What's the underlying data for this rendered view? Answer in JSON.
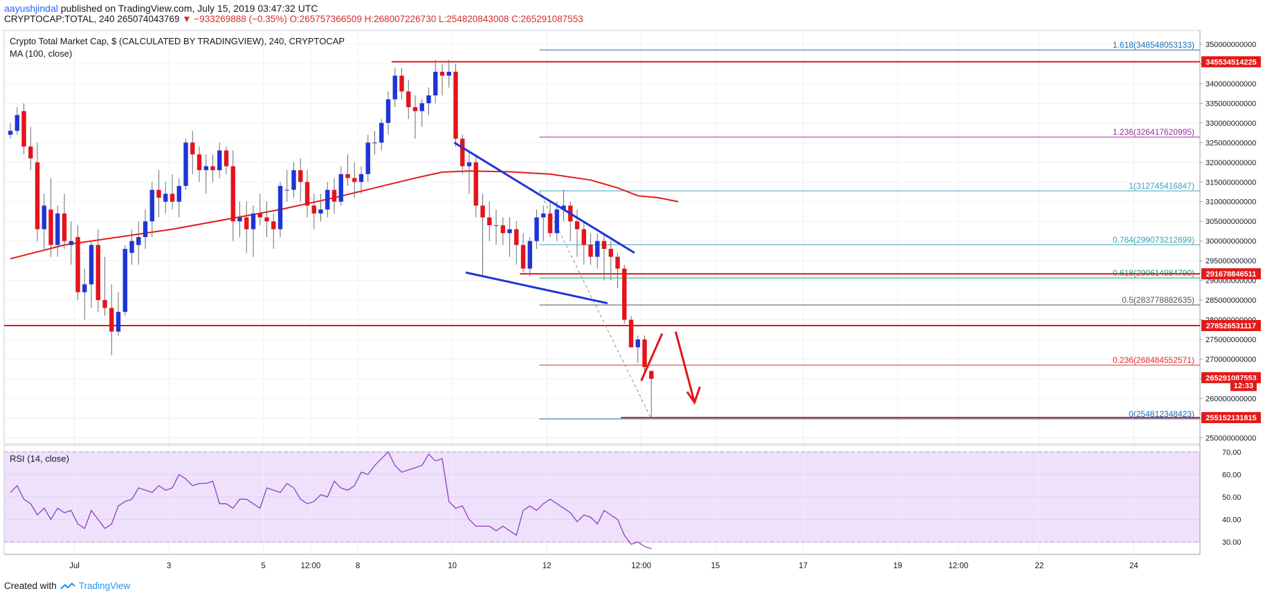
{
  "header": {
    "author": "aayushjindal",
    "published": "published on TradingView.com, July 15, 2019 03:47:32 UTC",
    "symbol": "CRYPTOCAP:TOTAL, 240",
    "last": "265074043769",
    "change": "−933269888 (−0.35%)",
    "open": "O:265757366509",
    "high": "H:268007226730",
    "low": "L:254820843008",
    "close": "C:265291087553"
  },
  "legend": {
    "title": "Crypto Total Market Cap, $ (CALCULATED BY TRADINGVIEW), 240, CRYPTOCAP",
    "ma": "MA (100, close)",
    "rsi": "RSI (14, close)"
  },
  "footer": {
    "created": "Created with",
    "brand": "TradingView"
  },
  "colors": {
    "up": "#1e35d6",
    "down": "#e3141a",
    "ma": "#e31a1a",
    "rsi": "#8e3ec9",
    "rsi_band": "#efe0fb",
    "trend": "#1e35d6",
    "fib_blue": "#1a6fb0",
    "fib_purple": "#9b2f9d",
    "fib_teal": "#3fa2b8",
    "fib_green": "#1b9a63",
    "fib_red": "#e52b2b"
  },
  "chart_data": {
    "type": "candlestick",
    "y_axis_labels": [
      "350000000000",
      "345000000000",
      "340000000000",
      "335000000000",
      "330000000000",
      "325000000000",
      "320000000000",
      "315000000000",
      "310000000000",
      "305000000000",
      "300000000000",
      "295000000000",
      "290000000000",
      "285000000000",
      "280000000000",
      "275000000000",
      "270000000000",
      "265000000000",
      "260000000000",
      "255000000000",
      "250000000000"
    ],
    "ylim": [
      248500000000,
      353500000000
    ],
    "rsi_axis_labels": [
      "70.00",
      "60.00",
      "50.00",
      "40.00",
      "30.00"
    ],
    "rsi_lim": [
      24.5,
      73
    ],
    "rsi_band": [
      30,
      70
    ],
    "x_axis_labels": [
      {
        "t": 9.5,
        "label": "Jul"
      },
      {
        "t": 23.5,
        "label": "3"
      },
      {
        "t": 37.5,
        "label": "5"
      },
      {
        "t": 44.5,
        "label": "12:00"
      },
      {
        "t": 51.5,
        "label": "8"
      },
      {
        "t": 65.5,
        "label": "10"
      },
      {
        "t": 79.5,
        "label": "12"
      },
      {
        "t": 93.5,
        "label": "12:00"
      },
      {
        "t": 104.5,
        "label": "15"
      },
      {
        "t": 117.5,
        "label": "17"
      },
      {
        "t": 131.5,
        "label": "19"
      },
      {
        "t": 140.5,
        "label": "12:00"
      },
      {
        "t": 152.5,
        "label": "22"
      },
      {
        "t": 166.5,
        "label": "24"
      }
    ],
    "candles": [
      [
        327,
        330,
        326,
        328
      ],
      [
        328,
        334,
        327,
        332
      ],
      [
        333,
        335,
        322,
        324
      ],
      [
        324,
        329,
        318,
        321
      ],
      [
        320,
        325,
        300,
        303
      ],
      [
        303,
        312,
        298,
        309
      ],
      [
        308,
        316,
        296,
        299
      ],
      [
        299,
        309,
        296,
        307
      ],
      [
        307,
        312,
        298,
        300
      ],
      [
        299,
        305,
        294,
        300
      ],
      [
        301,
        304,
        285,
        287
      ],
      [
        287,
        293,
        280,
        289
      ],
      [
        289,
        300,
        283,
        299
      ],
      [
        299,
        303,
        282,
        285
      ],
      [
        285,
        296,
        281,
        283
      ],
      [
        283,
        289,
        271,
        277
      ],
      [
        277,
        287,
        276,
        282
      ],
      [
        282,
        299,
        281,
        298
      ],
      [
        297,
        303,
        294,
        300
      ],
      [
        299,
        305,
        294,
        301
      ],
      [
        301,
        308,
        298,
        305
      ],
      [
        305,
        315,
        301,
        313
      ],
      [
        313,
        318,
        306,
        311
      ],
      [
        310,
        315,
        307,
        312
      ],
      [
        312,
        317,
        308,
        310
      ],
      [
        310,
        316,
        306,
        314
      ],
      [
        314,
        326,
        313,
        325
      ],
      [
        325,
        328,
        317,
        322
      ],
      [
        322,
        324,
        315,
        318
      ],
      [
        318,
        322,
        312,
        319
      ],
      [
        319,
        322,
        315,
        318
      ],
      [
        318,
        325,
        316,
        323
      ],
      [
        323,
        324,
        317,
        319
      ],
      [
        319,
        323,
        300,
        305
      ],
      [
        305,
        310,
        301,
        306
      ],
      [
        306,
        310,
        297,
        303
      ],
      [
        303,
        309,
        296,
        307
      ],
      [
        307,
        312,
        304,
        306
      ],
      [
        306,
        310,
        301,
        305
      ],
      [
        305,
        307,
        298,
        303
      ],
      [
        303,
        315,
        301,
        314
      ],
      [
        313,
        318,
        310,
        313
      ],
      [
        313,
        320,
        311,
        318
      ],
      [
        318,
        321,
        310,
        315
      ],
      [
        315,
        318,
        306,
        309
      ],
      [
        309,
        312,
        303,
        307
      ],
      [
        307,
        312,
        305,
        308
      ],
      [
        308,
        315,
        306,
        313
      ],
      [
        313,
        316,
        307,
        310
      ],
      [
        310,
        319,
        309,
        317
      ],
      [
        317,
        322,
        314,
        316
      ],
      [
        316,
        320,
        311,
        315
      ],
      [
        315,
        319,
        312,
        317
      ],
      [
        317,
        327,
        315,
        325
      ],
      [
        325,
        328,
        322,
        325
      ],
      [
        325,
        331,
        323,
        330
      ],
      [
        330,
        338,
        327,
        336
      ],
      [
        336,
        344,
        334,
        342
      ],
      [
        342,
        344,
        336,
        338
      ],
      [
        338,
        341,
        331,
        334
      ],
      [
        334,
        337,
        326,
        333
      ],
      [
        333,
        336,
        329,
        335
      ],
      [
        335,
        339,
        332,
        337
      ],
      [
        337,
        346,
        335,
        343
      ],
      [
        343,
        345,
        337,
        342
      ],
      [
        342,
        346,
        339,
        343
      ],
      [
        343,
        345,
        324,
        326
      ],
      [
        326,
        327,
        317,
        319
      ],
      [
        319,
        323,
        312,
        320
      ],
      [
        320,
        322,
        306,
        309
      ],
      [
        309,
        312,
        291,
        306
      ],
      [
        306,
        310,
        300,
        304
      ],
      [
        304,
        308,
        299,
        304
      ],
      [
        304,
        306,
        299,
        302
      ],
      [
        302,
        306,
        296,
        303
      ],
      [
        303,
        305,
        294,
        299
      ],
      [
        299,
        302,
        292,
        293
      ],
      [
        293,
        301,
        291,
        300
      ],
      [
        300,
        308,
        298,
        306
      ],
      [
        306,
        309,
        300,
        307
      ],
      [
        307,
        310,
        301,
        302
      ],
      [
        302,
        310,
        300,
        308
      ],
      [
        308,
        313,
        305,
        309
      ],
      [
        309,
        310,
        300,
        305
      ],
      [
        305,
        308,
        296,
        303
      ],
      [
        303,
        305,
        294,
        299
      ],
      [
        299,
        302,
        294,
        296
      ],
      [
        296,
        302,
        293,
        300
      ],
      [
        300,
        302,
        290,
        298
      ],
      [
        298,
        300,
        290,
        296
      ],
      [
        296,
        297,
        288,
        293
      ],
      [
        293,
        294,
        279,
        280
      ],
      [
        280,
        281,
        273,
        273
      ],
      [
        273,
        276,
        269,
        275
      ],
      [
        275,
        276,
        266,
        268
      ],
      [
        267,
        267,
        255,
        265
      ]
    ],
    "ma100": [
      [
        0,
        295.5
      ],
      [
        8,
        299
      ],
      [
        16,
        301
      ],
      [
        24,
        303
      ],
      [
        32,
        305.5
      ],
      [
        40,
        308
      ],
      [
        48,
        311
      ],
      [
        54,
        313.5
      ],
      [
        60,
        316
      ],
      [
        64,
        317.5
      ],
      [
        68,
        317.8
      ],
      [
        74,
        317.6
      ],
      [
        80,
        317
      ],
      [
        86,
        315.5
      ],
      [
        90,
        313.5
      ],
      [
        93,
        311.5
      ],
      [
        96,
        311
      ],
      [
        99,
        310
      ]
    ],
    "rsi": [
      [
        0,
        52
      ],
      [
        1,
        55
      ],
      [
        2,
        49
      ],
      [
        3,
        47
      ],
      [
        4,
        42
      ],
      [
        5,
        45
      ],
      [
        6,
        40
      ],
      [
        7,
        45
      ],
      [
        8,
        43
      ],
      [
        9,
        44
      ],
      [
        10,
        38
      ],
      [
        11,
        36
      ],
      [
        12,
        44
      ],
      [
        13,
        40
      ],
      [
        14,
        36
      ],
      [
        15,
        38
      ],
      [
        16,
        46
      ],
      [
        17,
        48
      ],
      [
        18,
        49
      ],
      [
        19,
        54
      ],
      [
        20,
        53
      ],
      [
        21,
        52
      ],
      [
        22,
        55
      ],
      [
        23,
        53
      ],
      [
        24,
        54
      ],
      [
        25,
        60
      ],
      [
        26,
        58
      ],
      [
        27,
        55
      ],
      [
        28,
        56
      ],
      [
        29,
        56
      ],
      [
        30,
        57
      ],
      [
        31,
        47
      ],
      [
        32,
        47
      ],
      [
        33,
        45
      ],
      [
        34,
        49
      ],
      [
        35,
        49
      ],
      [
        36,
        47
      ],
      [
        37,
        45
      ],
      [
        38,
        54
      ],
      [
        39,
        53
      ],
      [
        40,
        52
      ],
      [
        41,
        56
      ],
      [
        42,
        54
      ],
      [
        43,
        49
      ],
      [
        44,
        47
      ],
      [
        45,
        48
      ],
      [
        46,
        51
      ],
      [
        47,
        50
      ],
      [
        48,
        57
      ],
      [
        49,
        54
      ],
      [
        50,
        53
      ],
      [
        51,
        55
      ],
      [
        52,
        61
      ],
      [
        53,
        60
      ],
      [
        54,
        64
      ],
      [
        55,
        67
      ],
      [
        56,
        70
      ],
      [
        57,
        64
      ],
      [
        58,
        61
      ],
      [
        59,
        62
      ],
      [
        60,
        63
      ],
      [
        61,
        64
      ],
      [
        62,
        69
      ],
      [
        63,
        66
      ],
      [
        64,
        67
      ],
      [
        65,
        48
      ],
      [
        66,
        45
      ],
      [
        67,
        46
      ],
      [
        68,
        40
      ],
      [
        69,
        37
      ],
      [
        70,
        37
      ],
      [
        71,
        37
      ],
      [
        72,
        35
      ],
      [
        73,
        37
      ],
      [
        74,
        35
      ],
      [
        75,
        33
      ],
      [
        76,
        44
      ],
      [
        77,
        46
      ],
      [
        78,
        44
      ],
      [
        79,
        47
      ],
      [
        80,
        49
      ],
      [
        81,
        47
      ],
      [
        82,
        45
      ],
      [
        83,
        43
      ],
      [
        84,
        39
      ],
      [
        85,
        42
      ],
      [
        86,
        41
      ],
      [
        87,
        38
      ],
      [
        88,
        44
      ],
      [
        89,
        42
      ],
      [
        90,
        40
      ],
      [
        91,
        33
      ],
      [
        92,
        29
      ],
      [
        93,
        30
      ],
      [
        94,
        28
      ],
      [
        95,
        27
      ]
    ],
    "fib_levels": [
      {
        "ratio": "1.618",
        "value": "(348548053133)",
        "y": 348.548,
        "color": "#1a6fb0"
      },
      {
        "ratio": "1.236",
        "value": "(326417620995)",
        "y": 326.418,
        "color": "#9b2f9d"
      },
      {
        "ratio": "1",
        "value": "(312745416847)",
        "y": 312.745,
        "color": "#3fa2b8"
      },
      {
        "ratio": "0.764",
        "value": "(299073212699)",
        "y": 299.073,
        "color": "#3fa2b8"
      },
      {
        "ratio": "0.618",
        "value": "(290614984790)",
        "y": 290.615,
        "color": "#1b9a63"
      },
      {
        "ratio": "0.5",
        "value": "(283778882635)",
        "y": 283.779,
        "color": "#555555"
      },
      {
        "ratio": "0.236",
        "value": "(268484552571)",
        "y": 268.485,
        "color": "#e52b2b"
      },
      {
        "ratio": "0",
        "value": "(254812348423)",
        "y": 254.812,
        "color": "#1a6fb0"
      }
    ],
    "price_tags": [
      {
        "label": "345534514225",
        "y": 345.535,
        "bg": "#e31a1a"
      },
      {
        "label": "291678846511",
        "y": 291.679,
        "bg": "#e31a1a"
      },
      {
        "label": "278526531117",
        "y": 278.527,
        "bg": "#e31a1a"
      },
      {
        "label": "265291087553",
        "y": 265.291,
        "bg": "#e31a1a"
      },
      {
        "label": "12:33",
        "y": 263.3,
        "bg": "#e31a1a"
      },
      {
        "label": "255152131815",
        "y": 255.152,
        "bg": "#e31a1a"
      }
    ],
    "horizontal_lines": [
      {
        "y": 345.535,
        "t0": 56.5,
        "t1": 170
      },
      {
        "y": 291.679,
        "t0": 75.5,
        "t1": 170
      },
      {
        "y": 278.527,
        "t0": -1,
        "t1": 170
      },
      {
        "y": 255.152,
        "t0": 90.5,
        "t1": 170
      }
    ]
  }
}
